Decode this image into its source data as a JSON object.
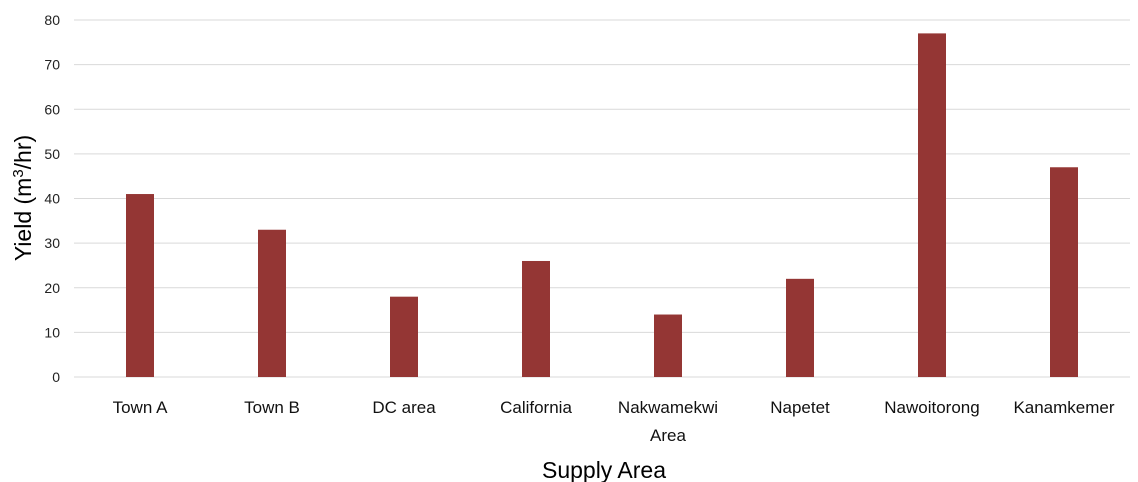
{
  "chart_data": {
    "type": "bar",
    "categories": [
      [
        "Town A"
      ],
      [
        "Town B"
      ],
      [
        "DC area"
      ],
      [
        "California"
      ],
      [
        "Nakwamekwi",
        "Area"
      ],
      [
        "Napetet"
      ],
      [
        "Nawoitorong"
      ],
      [
        "Kanamkemer"
      ]
    ],
    "values": [
      41,
      33,
      18,
      26,
      14,
      22,
      77,
      47
    ],
    "xlabel": "Supply Area",
    "ylabel": {
      "before": "Yield (m",
      "sup": "3",
      "after": "/hr)"
    },
    "ylim": [
      0,
      80
    ],
    "yticks": [
      0,
      10,
      20,
      30,
      40,
      50,
      60,
      70,
      80
    ],
    "grid": true,
    "bar_color": "#943634",
    "grid_color": "#d9d9d9"
  }
}
